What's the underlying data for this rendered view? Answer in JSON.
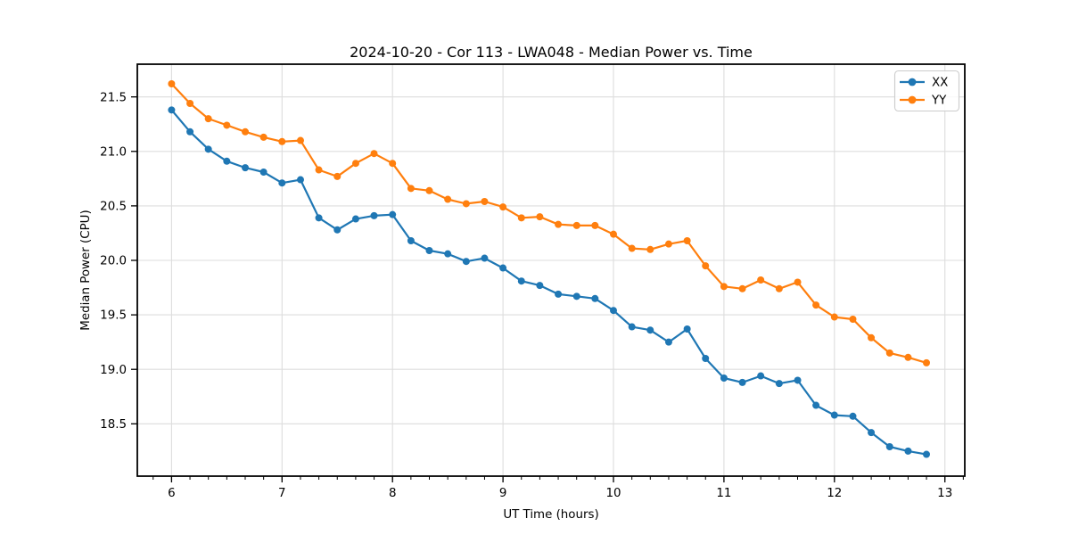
{
  "chart_data": {
    "type": "line",
    "title": "2024-10-20 - Cor 113 - LWA048 - Median Power vs. Time",
    "xlabel": "UT Time (hours)",
    "ylabel": "Median Power (CPU)",
    "xlim": [
      5.69,
      13.18
    ],
    "ylim": [
      18.02,
      21.8
    ],
    "x_major_ticks": [
      6,
      7,
      8,
      9,
      10,
      11,
      12,
      13
    ],
    "y_major_ticks": [
      18.5,
      19.0,
      19.5,
      20.0,
      20.5,
      21.0,
      21.5
    ],
    "x_minor_tick_step": 0.1666667,
    "grid": "major",
    "grid_color": "#dddddd",
    "legend_position": "upper-right",
    "x": [
      6.0,
      6.167,
      6.333,
      6.5,
      6.667,
      6.833,
      7.0,
      7.167,
      7.333,
      7.5,
      7.667,
      7.833,
      8.0,
      8.167,
      8.333,
      8.5,
      8.667,
      8.833,
      9.0,
      9.167,
      9.333,
      9.5,
      9.667,
      9.833,
      10.0,
      10.167,
      10.333,
      10.5,
      10.667,
      10.833,
      11.0,
      11.167,
      11.333,
      11.5,
      11.667,
      11.833,
      12.0,
      12.167,
      12.333,
      12.5,
      12.667,
      12.833
    ],
    "series": [
      {
        "name": "XX",
        "color": "#1f77b4",
        "values": [
          21.38,
          21.18,
          21.02,
          20.91,
          20.85,
          20.81,
          20.71,
          20.74,
          20.39,
          20.28,
          20.38,
          20.41,
          20.42,
          20.18,
          20.09,
          20.06,
          19.99,
          20.02,
          19.93,
          19.81,
          19.77,
          19.69,
          19.67,
          19.65,
          19.54,
          19.39,
          19.36,
          19.25,
          19.37,
          19.1,
          18.92,
          18.88,
          18.94,
          18.87,
          18.9,
          18.67,
          18.58,
          18.57,
          18.42,
          18.29,
          18.25,
          18.22
        ]
      },
      {
        "name": "YY",
        "color": "#ff7f0e",
        "values": [
          21.62,
          21.44,
          21.3,
          21.24,
          21.18,
          21.13,
          21.09,
          21.1,
          20.83,
          20.77,
          20.89,
          20.98,
          20.89,
          20.66,
          20.64,
          20.56,
          20.52,
          20.54,
          20.49,
          20.39,
          20.4,
          20.33,
          20.32,
          20.32,
          20.24,
          20.11,
          20.1,
          20.15,
          20.18,
          19.95,
          19.76,
          19.74,
          19.82,
          19.74,
          19.8,
          19.59,
          19.48,
          19.46,
          19.29,
          19.15,
          19.11,
          19.06
        ]
      }
    ]
  }
}
